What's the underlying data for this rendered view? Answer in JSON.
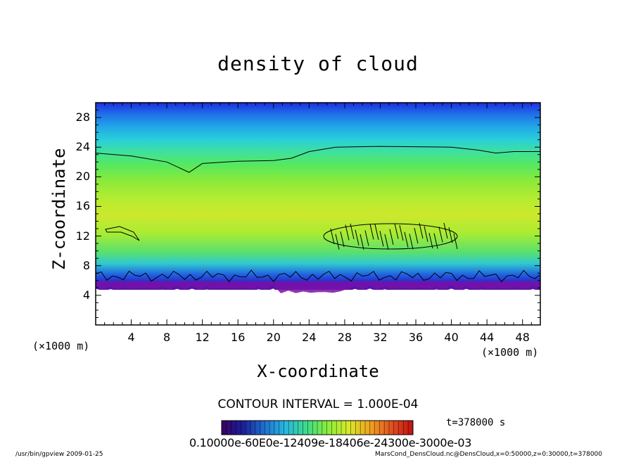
{
  "chart_data": {
    "type": "heatmap",
    "title": "density of cloud",
    "xlabel": "X-coordinate",
    "ylabel": "Z-coordinate",
    "x_unit": "(×1000 m)",
    "y_unit": "(×1000 m)",
    "xlim": [
      0,
      50
    ],
    "ylim": [
      0,
      30
    ],
    "x_ticks": [
      4,
      8,
      12,
      16,
      20,
      24,
      28,
      32,
      36,
      40,
      44,
      48
    ],
    "y_ticks": [
      4,
      8,
      12,
      16,
      20,
      24,
      28
    ],
    "contour_interval_label": "CONTOUR INTERVAL = 1.000E-04",
    "time_label": "t=378000 s",
    "colorbar_label_text": "0.10000e-60E0e-12409e-18406e-24300e-3000e-03",
    "colorbar_colors": [
      "#3a0060",
      "#1a1f9a",
      "#1f6fd0",
      "#28b8e0",
      "#3ddc8a",
      "#8ced3a",
      "#d8e82a",
      "#f0a020",
      "#e05020",
      "#c01010"
    ],
    "cloud_base_km": 5.5,
    "cloud_top_contour_km": [
      [
        0,
        23.2
      ],
      [
        4,
        22.8
      ],
      [
        8,
        22.0
      ],
      [
        10.5,
        20.6
      ],
      [
        12,
        21.8
      ],
      [
        16,
        22.1
      ],
      [
        20,
        22.2
      ],
      [
        22,
        22.5
      ],
      [
        24,
        23.4
      ],
      [
        27,
        24.0
      ],
      [
        32,
        24.1
      ],
      [
        40,
        24.0
      ],
      [
        43,
        23.6
      ],
      [
        45,
        23.2
      ],
      [
        47,
        23.4
      ],
      [
        50,
        23.4
      ]
    ]
  },
  "footer": {
    "left": "/usr/bin/gpview  2009-01-25",
    "right": "MarsCond_DensCloud.nc@DensCloud,x=0:50000,z=0:30000,t=378000"
  }
}
